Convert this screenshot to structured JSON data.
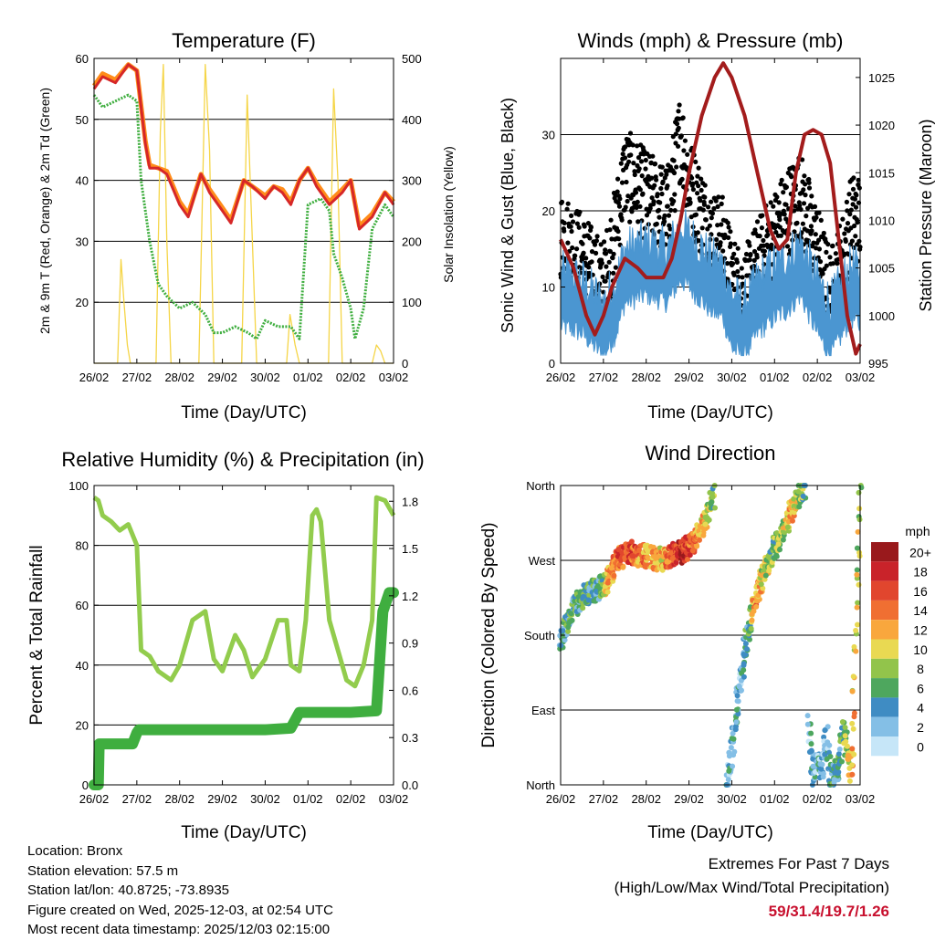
{
  "station": {
    "location_label": "Location: Bronx",
    "elevation_label": "Station elevation: 57.5 m",
    "latlon_label": "Station lat/lon: 40.8725; -73.8935",
    "created_label": "Figure created on Wed, 2025-12-03, at 02:54 UTC",
    "recent_label": "Most recent data timestamp: 2025/12/03 02:15:00"
  },
  "extremes": {
    "title": "Extremes For Past 7 Days",
    "subtitle": "(High/Low/Max Wind/Total Precipitation)",
    "values": "59/31.4/19.7/1.26"
  },
  "chart_data": [
    {
      "type": "line",
      "id": "temperature",
      "title": "Temperature (F)",
      "xlabel": "Time (Day/UTC)",
      "ylabel": "2m & 9m T (Red, Orange) & 2m Td (Green)",
      "ylabel_right": "Solar Insolation (Yellow)",
      "x_ticks": [
        "26/02",
        "27/02",
        "28/02",
        "29/02",
        "30/02",
        "01/02",
        "02/02",
        "03/02"
      ],
      "xlim": [
        0,
        7
      ],
      "ylim": [
        10,
        60
      ],
      "y_ticks": [
        20,
        30,
        40,
        50,
        60
      ],
      "ylim_right": [
        0,
        500
      ],
      "y_ticks_right": [
        0,
        100,
        200,
        300,
        400,
        500
      ],
      "series": [
        {
          "name": "2m T",
          "color": "#d62728",
          "x": [
            0,
            0.2,
            0.5,
            0.8,
            1.0,
            1.2,
            1.3,
            1.5,
            1.7,
            2.0,
            2.2,
            2.5,
            2.7,
            3.0,
            3.2,
            3.5,
            3.7,
            4.0,
            4.2,
            4.4,
            4.6,
            4.8,
            5.0,
            5.2,
            5.5,
            5.8,
            6.0,
            6.2,
            6.5,
            6.8,
            7.0
          ],
          "values": [
            55,
            57,
            56,
            59,
            58,
            46,
            42,
            42,
            41,
            36,
            34,
            41,
            38,
            35,
            33,
            40,
            39,
            37,
            39,
            38,
            36,
            40,
            42,
            39,
            36,
            38,
            40,
            32,
            34,
            38,
            36
          ]
        },
        {
          "name": "9m T",
          "color": "#ff8c1a",
          "x": [
            0,
            0.2,
            0.5,
            0.8,
            1.0,
            1.2,
            1.3,
            1.5,
            1.7,
            2.0,
            2.2,
            2.5,
            2.7,
            3.0,
            3.2,
            3.5,
            3.7,
            4.0,
            4.2,
            4.4,
            4.6,
            4.8,
            5.0,
            5.2,
            5.5,
            5.8,
            6.0,
            6.2,
            6.5,
            6.8,
            7.0
          ],
          "values": [
            55.5,
            57.5,
            56.5,
            59,
            58,
            46.5,
            42.5,
            42,
            41.5,
            36.5,
            34.5,
            41,
            38.5,
            35.5,
            33.5,
            40,
            39,
            37.5,
            39,
            38.5,
            36.5,
            40,
            42,
            39.5,
            36.5,
            38.5,
            40,
            32.5,
            34.5,
            38,
            36.5
          ]
        },
        {
          "name": "2m Td",
          "color": "#3fae3f",
          "x": [
            0,
            0.2,
            0.5,
            0.8,
            1.0,
            1.1,
            1.3,
            1.5,
            1.7,
            2.0,
            2.3,
            2.6,
            2.8,
            3.0,
            3.3,
            3.6,
            3.8,
            4.0,
            4.3,
            4.6,
            4.8,
            5.0,
            5.3,
            5.5,
            5.6,
            5.8,
            6.0,
            6.1,
            6.3,
            6.5,
            6.8,
            7.0
          ],
          "values": [
            54,
            52,
            53,
            54,
            53,
            40,
            30,
            23,
            21,
            19,
            20,
            18,
            15,
            15,
            16,
            15,
            14,
            17,
            16,
            16,
            14,
            36,
            37,
            35,
            28,
            24,
            19,
            14,
            19,
            32,
            36,
            34
          ]
        },
        {
          "name": "Solar Insolation",
          "color": "#f5d547",
          "axis": "right",
          "x": [
            0,
            0.55,
            0.63,
            0.7,
            0.78,
            0.85,
            1.0,
            1.45,
            1.55,
            1.62,
            1.7,
            1.8,
            2.0,
            2.45,
            2.6,
            2.7,
            2.8,
            3.0,
            3.45,
            3.58,
            3.7,
            3.8,
            4.0,
            4.5,
            4.58,
            4.7,
            4.8,
            5.0,
            5.48,
            5.6,
            5.7,
            5.8,
            6.0,
            6.5,
            6.6,
            6.7,
            6.8,
            7.0
          ],
          "values": [
            0,
            0,
            170,
            100,
            30,
            0,
            0,
            0,
            380,
            490,
            200,
            0,
            0,
            0,
            490,
            350,
            0,
            0,
            0,
            440,
            200,
            0,
            0,
            0,
            80,
            30,
            0,
            0,
            0,
            450,
            300,
            0,
            0,
            0,
            30,
            20,
            0,
            0
          ]
        }
      ]
    },
    {
      "type": "scatter",
      "id": "winds",
      "title": "Winds (mph) & Pressure (mb)",
      "xlabel": "Time (Day/UTC)",
      "ylabel": "Sonic Wind & Gust (Blue, Black)",
      "ylabel_right": "Station Pressure (Maroon)",
      "x_ticks": [
        "26/02",
        "27/02",
        "28/02",
        "29/02",
        "30/02",
        "01/02",
        "02/02",
        "03/02"
      ],
      "xlim": [
        0,
        7
      ],
      "ylim": [
        0,
        40
      ],
      "y_ticks": [
        0,
        10,
        20,
        30
      ],
      "ylim_right": [
        995,
        1027
      ],
      "y_ticks_right": [
        995,
        1000,
        1005,
        1010,
        1015,
        1020,
        1025
      ],
      "series": [
        {
          "name": "Sonic Wind",
          "color": "#4b96d1",
          "style": "band",
          "x": [
            0,
            0.5,
            1.0,
            1.3,
            1.5,
            2.0,
            2.5,
            2.8,
            3.0,
            3.5,
            3.8,
            4.0,
            4.3,
            4.6,
            5.0,
            5.3,
            5.6,
            6.0,
            6.3,
            6.6,
            6.8,
            7.0
          ],
          "values": [
            9,
            8,
            5,
            8,
            12,
            13,
            12,
            15,
            14,
            11,
            10,
            6,
            5,
            8,
            10,
            11,
            13,
            8,
            5,
            8,
            10,
            9
          ]
        },
        {
          "name": "Gust",
          "color": "#000000",
          "style": "points",
          "x": [
            0,
            0.5,
            1.0,
            1.3,
            1.5,
            2.0,
            2.5,
            2.8,
            3.0,
            3.5,
            3.8,
            4.0,
            4.3,
            4.6,
            5.0,
            5.3,
            5.6,
            6.0,
            6.3,
            6.6,
            6.8,
            7.0
          ],
          "values": [
            17,
            14,
            10,
            18,
            25,
            22,
            20,
            30,
            24,
            17,
            16,
            11,
            9,
            13,
            17,
            20,
            22,
            15,
            9,
            14,
            19,
            19
          ]
        },
        {
          "name": "Station Pressure",
          "color": "#a31c1c",
          "axis": "right",
          "x": [
            0,
            0.3,
            0.6,
            0.8,
            1.0,
            1.2,
            1.5,
            1.8,
            2.0,
            2.2,
            2.4,
            2.6,
            2.8,
            3.0,
            3.3,
            3.6,
            3.8,
            4.0,
            4.3,
            4.6,
            4.9,
            5.1,
            5.3,
            5.5,
            5.7,
            5.9,
            6.1,
            6.3,
            6.5,
            6.7,
            6.9,
            7.0
          ],
          "values": [
            1008,
            1005,
            1000,
            998,
            1000,
            1003,
            1006,
            1005,
            1004,
            1004,
            1004,
            1006,
            1010,
            1015,
            1021,
            1025,
            1026.5,
            1025,
            1021,
            1015,
            1009,
            1007,
            1008,
            1015,
            1019,
            1019.5,
            1019,
            1016,
            1008,
            1000,
            996,
            997
          ]
        }
      ]
    },
    {
      "type": "line",
      "id": "humidity",
      "title": "Relative Humidity (%) & Precipitation (in)",
      "xlabel": "Time (Day/UTC)",
      "ylabel": "Percent & Total Rainfall",
      "x_ticks": [
        "26/02",
        "27/02",
        "28/02",
        "29/02",
        "30/02",
        "01/02",
        "02/02",
        "03/02"
      ],
      "xlim": [
        0,
        7
      ],
      "ylim": [
        0,
        100
      ],
      "y_ticks": [
        0,
        20,
        40,
        60,
        80,
        100
      ],
      "ylim_right": [
        0,
        1.9
      ],
      "y_ticks_right": [
        0.0,
        0.3,
        0.6,
        0.9,
        1.2,
        1.5,
        1.8
      ],
      "series": [
        {
          "name": "Relative Humidity",
          "color": "#92cc4d",
          "x": [
            0,
            0.1,
            0.2,
            0.4,
            0.6,
            0.8,
            1.0,
            1.1,
            1.2,
            1.3,
            1.5,
            1.8,
            2.0,
            2.3,
            2.6,
            2.8,
            3.0,
            3.3,
            3.5,
            3.7,
            4.0,
            4.3,
            4.5,
            4.6,
            4.8,
            4.95,
            5.1,
            5.2,
            5.3,
            5.5,
            5.7,
            5.9,
            6.1,
            6.3,
            6.5,
            6.6,
            6.8,
            7.0
          ],
          "values": [
            96,
            95,
            90,
            88,
            85,
            87,
            80,
            45,
            44,
            43,
            38,
            35,
            40,
            55,
            58,
            42,
            38,
            50,
            45,
            36,
            42,
            55,
            55,
            40,
            38,
            55,
            90,
            92,
            88,
            55,
            45,
            35,
            33,
            40,
            55,
            96,
            95,
            90
          ]
        },
        {
          "name": "Total Precipitation",
          "color": "#3fae3f",
          "x": [
            0,
            0.1,
            0.12,
            0.4,
            0.8,
            0.9,
            1.0,
            1.05,
            1.5,
            2.0,
            3.0,
            4.0,
            4.6,
            4.8,
            5.0,
            5.5,
            6.0,
            6.6,
            6.75,
            6.9,
            7.0
          ],
          "values": [
            0.0,
            0.0,
            0.26,
            0.26,
            0.26,
            0.26,
            0.33,
            0.35,
            0.35,
            0.35,
            0.35,
            0.35,
            0.36,
            0.46,
            0.46,
            0.46,
            0.46,
            0.47,
            1.1,
            1.22,
            1.22
          ]
        }
      ]
    },
    {
      "type": "scatter",
      "id": "direction",
      "title": "Wind Direction",
      "xlabel": "Time (Day/UTC)",
      "ylabel": "Direction (Colored By Speed)",
      "x_ticks": [
        "26/02",
        "27/02",
        "28/02",
        "29/02",
        "30/02",
        "01/02",
        "02/02",
        "03/02"
      ],
      "xlim": [
        0,
        7
      ],
      "ylim": [
        0,
        360
      ],
      "y_ticks": [
        0,
        90,
        180,
        270,
        360
      ],
      "y_tick_labels": [
        "North",
        "East",
        "South",
        "West",
        "North"
      ],
      "legend_title": "mph",
      "legend_labels": [
        "20+",
        "18",
        "16",
        "14",
        "12",
        "10",
        "8",
        "6",
        "4",
        "2",
        "0"
      ],
      "legend_colors": [
        "#99191c",
        "#c9232a",
        "#e1462e",
        "#f06f32",
        "#f9a73d",
        "#e9d952",
        "#92c44b",
        "#4ea75e",
        "#3f8cc3",
        "#84bfe6",
        "#c6e6f8"
      ],
      "segments": [
        {
          "x": [
            0,
            0.3,
            0.6,
            0.9,
            1.1,
            1.3,
            1.6,
            2.0,
            2.4,
            2.8,
            3.1,
            3.4,
            3.6
          ],
          "values": [
            175,
            215,
            230,
            235,
            245,
            270,
            280,
            275,
            270,
            280,
            290,
            320,
            350
          ],
          "speeds": [
            4,
            5,
            6,
            4,
            12,
            14,
            16,
            12,
            11,
            18,
            14,
            10,
            6
          ]
        },
        {
          "x": [
            3.9,
            4.0,
            4.15,
            4.3,
            4.4,
            4.55,
            4.7,
            4.9,
            5.0,
            5.2,
            5.4,
            5.6,
            5.7
          ],
          "values": [
            0,
            40,
            110,
            160,
            195,
            220,
            250,
            270,
            285,
            305,
            330,
            350,
            360
          ],
          "speeds": [
            3,
            4,
            3,
            4,
            5,
            14,
            10,
            8,
            6,
            9,
            12,
            8,
            6
          ]
        },
        {
          "x": [
            5.8,
            5.9,
            6.0,
            6.1,
            6.2,
            6.3,
            6.5,
            6.6,
            6.8,
            7.0
          ],
          "values": [
            75,
            10,
            30,
            15,
            60,
            10,
            20,
            70,
            15,
            360
          ],
          "speeds": [
            3,
            4,
            3,
            4,
            3,
            4,
            5,
            6,
            12,
            8
          ]
        }
      ]
    }
  ]
}
